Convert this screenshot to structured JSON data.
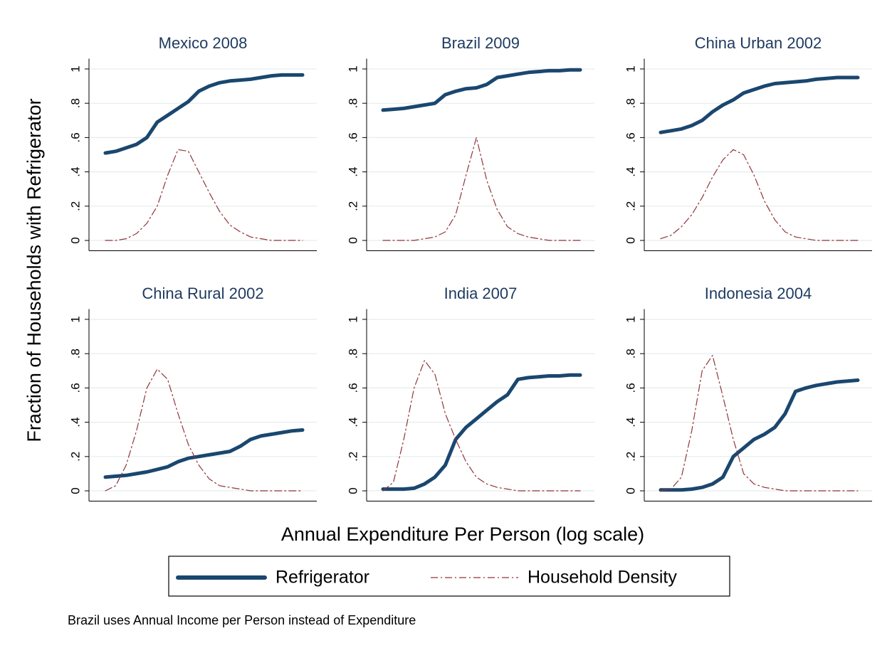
{
  "y_label": "Fraction of Households with Refrigerator",
  "x_label": "Annual Expenditure Per Person (log scale)",
  "note": "Brazil uses Annual Income per Person instead of Expenditure",
  "chart_data": [
    {
      "type": "line",
      "title": "Mexico 2008",
      "ylim": [
        -0.06,
        1.06
      ],
      "grid": true,
      "yticks": [
        0,
        {
          "value": 0.2,
          "label": ".2"
        },
        {
          "value": 0.4,
          "label": ".4"
        },
        {
          "value": 0.6,
          "label": ".6"
        },
        {
          "value": 0.8,
          "label": ".8"
        },
        1
      ],
      "series": [
        {
          "name": "Refrigerator",
          "color": "#1a476f",
          "values": [
            0.51,
            0.52,
            0.54,
            0.56,
            0.6,
            0.69,
            0.73,
            0.77,
            0.81,
            0.87,
            0.9,
            0.92,
            0.93,
            0.935,
            0.94,
            0.95,
            0.96,
            0.965,
            0.965,
            0.965
          ]
        },
        {
          "name": "Household Density",
          "color": "#90353b",
          "values": [
            0,
            0,
            0.01,
            0.04,
            0.1,
            0.2,
            0.38,
            0.53,
            0.52,
            0.4,
            0.28,
            0.17,
            0.09,
            0.05,
            0.02,
            0.01,
            0,
            0,
            0,
            0
          ]
        }
      ]
    },
    {
      "type": "line",
      "title": "Brazil 2009",
      "ylim": [
        -0.06,
        1.06
      ],
      "grid": true,
      "yticks": [
        0,
        {
          "value": 0.2,
          "label": ".2"
        },
        {
          "value": 0.4,
          "label": ".4"
        },
        {
          "value": 0.6,
          "label": ".6"
        },
        {
          "value": 0.8,
          "label": ".8"
        },
        1
      ],
      "series": [
        {
          "name": "Refrigerator",
          "color": "#1a476f",
          "values": [
            0.76,
            0.765,
            0.77,
            0.78,
            0.79,
            0.8,
            0.85,
            0.87,
            0.885,
            0.89,
            0.91,
            0.95,
            0.96,
            0.97,
            0.98,
            0.985,
            0.99,
            0.99,
            0.995,
            0.995
          ]
        },
        {
          "name": "Household Density",
          "color": "#90353b",
          "values": [
            0,
            0,
            0,
            0,
            0.01,
            0.02,
            0.05,
            0.15,
            0.38,
            0.6,
            0.35,
            0.18,
            0.08,
            0.04,
            0.02,
            0.01,
            0,
            0,
            0,
            0
          ]
        }
      ]
    },
    {
      "type": "line",
      "title": "China Urban 2002",
      "ylim": [
        -0.06,
        1.06
      ],
      "grid": true,
      "yticks": [
        0,
        {
          "value": 0.2,
          "label": ".2"
        },
        {
          "value": 0.4,
          "label": ".4"
        },
        {
          "value": 0.6,
          "label": ".6"
        },
        {
          "value": 0.8,
          "label": ".8"
        },
        1
      ],
      "series": [
        {
          "name": "Refrigerator",
          "color": "#1a476f",
          "values": [
            0.63,
            0.64,
            0.65,
            0.67,
            0.7,
            0.75,
            0.79,
            0.82,
            0.86,
            0.88,
            0.9,
            0.915,
            0.92,
            0.925,
            0.93,
            0.94,
            0.945,
            0.95,
            0.95,
            0.95
          ]
        },
        {
          "name": "Household Density",
          "color": "#90353b",
          "values": [
            0.01,
            0.03,
            0.08,
            0.15,
            0.25,
            0.37,
            0.47,
            0.53,
            0.5,
            0.38,
            0.23,
            0.12,
            0.05,
            0.02,
            0.01,
            0,
            0,
            0,
            0,
            0
          ]
        }
      ]
    },
    {
      "type": "line",
      "title": "China Rural 2002",
      "ylim": [
        -0.06,
        1.06
      ],
      "grid": true,
      "yticks": [
        0,
        {
          "value": 0.2,
          "label": ".2"
        },
        {
          "value": 0.4,
          "label": ".4"
        },
        {
          "value": 0.6,
          "label": ".6"
        },
        {
          "value": 0.8,
          "label": ".8"
        },
        1
      ],
      "series": [
        {
          "name": "Refrigerator",
          "color": "#1a476f",
          "values": [
            0.08,
            0.085,
            0.09,
            0.1,
            0.11,
            0.125,
            0.14,
            0.17,
            0.19,
            0.2,
            0.21,
            0.22,
            0.23,
            0.26,
            0.3,
            0.32,
            0.33,
            0.34,
            0.35,
            0.355
          ]
        },
        {
          "name": "Household Density",
          "color": "#90353b",
          "values": [
            0,
            0.03,
            0.15,
            0.35,
            0.6,
            0.71,
            0.65,
            0.45,
            0.27,
            0.15,
            0.07,
            0.03,
            0.02,
            0.01,
            0,
            0,
            0,
            0,
            0,
            0
          ]
        }
      ]
    },
    {
      "type": "line",
      "title": "India 2007",
      "ylim": [
        -0.06,
        1.06
      ],
      "grid": true,
      "yticks": [
        0,
        {
          "value": 0.2,
          "label": ".2"
        },
        {
          "value": 0.4,
          "label": ".4"
        },
        {
          "value": 0.6,
          "label": ".6"
        },
        {
          "value": 0.8,
          "label": ".8"
        },
        1
      ],
      "series": [
        {
          "name": "Refrigerator",
          "color": "#1a476f",
          "values": [
            0.01,
            0.01,
            0.01,
            0.015,
            0.04,
            0.08,
            0.15,
            0.3,
            0.37,
            0.42,
            0.47,
            0.52,
            0.56,
            0.65,
            0.66,
            0.665,
            0.67,
            0.67,
            0.675,
            0.675
          ]
        },
        {
          "name": "Household Density",
          "color": "#90353b",
          "values": [
            0,
            0.05,
            0.3,
            0.6,
            0.76,
            0.68,
            0.45,
            0.3,
            0.17,
            0.08,
            0.04,
            0.02,
            0.01,
            0,
            0,
            0,
            0,
            0,
            0,
            0
          ]
        }
      ]
    },
    {
      "type": "line",
      "title": "Indonesia 2004",
      "ylim": [
        -0.06,
        1.06
      ],
      "grid": true,
      "yticks": [
        0,
        {
          "value": 0.2,
          "label": ".2"
        },
        {
          "value": 0.4,
          "label": ".4"
        },
        {
          "value": 0.6,
          "label": ".6"
        },
        {
          "value": 0.8,
          "label": ".8"
        },
        1
      ],
      "series": [
        {
          "name": "Refrigerator",
          "color": "#1a476f",
          "values": [
            0.005,
            0.005,
            0.005,
            0.01,
            0.02,
            0.04,
            0.08,
            0.2,
            0.25,
            0.3,
            0.33,
            0.37,
            0.45,
            0.58,
            0.6,
            0.615,
            0.625,
            0.635,
            0.64,
            0.645
          ]
        },
        {
          "name": "Household Density",
          "color": "#90353b",
          "values": [
            0,
            0.01,
            0.08,
            0.35,
            0.7,
            0.79,
            0.55,
            0.3,
            0.1,
            0.04,
            0.02,
            0.01,
            0,
            0,
            0,
            0,
            0,
            0,
            0,
            0
          ]
        }
      ]
    }
  ]
}
